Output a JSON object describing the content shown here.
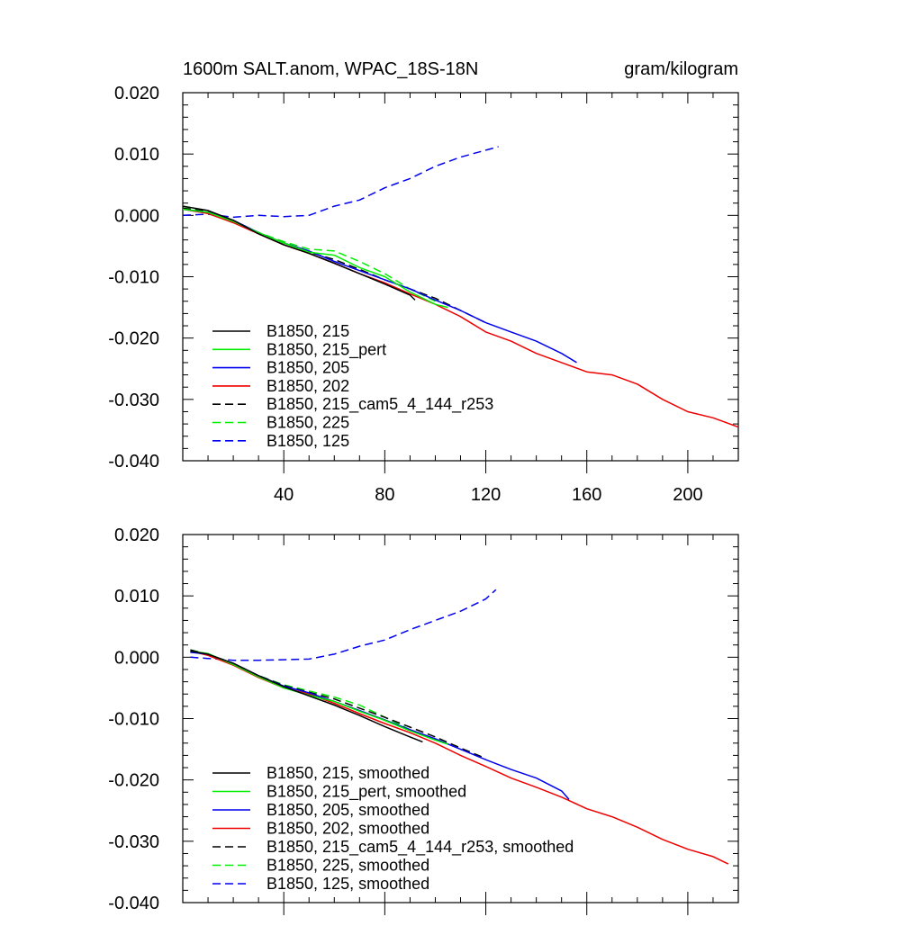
{
  "header": {
    "title": "1600m SALT.anom, WPAC_18S-18N",
    "units": "gram/kilogram"
  },
  "chart_data": [
    {
      "type": "line",
      "panel": "top",
      "xlim": [
        0,
        220
      ],
      "ylim": [
        -0.04,
        0.02
      ],
      "xticks": [
        40,
        80,
        120,
        160,
        200
      ],
      "xtick_labels": [
        "40",
        "80",
        "120",
        "160",
        "200"
      ],
      "yticks": [
        0.02,
        0.01,
        0.0,
        -0.01,
        -0.02,
        -0.03,
        -0.04
      ],
      "ytick_labels": [
        "0.020",
        "0.010",
        "0.000",
        "-0.010",
        "-0.020",
        "-0.030",
        "-0.040"
      ],
      "legend_position": "bottom-left",
      "series": [
        {
          "name": "B1850, 215",
          "color": "#000000",
          "dash": "solid",
          "x": [
            0,
            10,
            20,
            30,
            40,
            50,
            60,
            70,
            80,
            90,
            92
          ],
          "y": [
            0.0015,
            0.0008,
            -0.0008,
            -0.003,
            -0.0048,
            -0.0062,
            -0.0078,
            -0.0095,
            -0.0112,
            -0.013,
            -0.0138
          ]
        },
        {
          "name": "B1850, 215_pert",
          "color": "#00ee00",
          "dash": "solid",
          "x": [
            0,
            10,
            20,
            30,
            40,
            50,
            60,
            70,
            80,
            90,
            100,
            105
          ],
          "y": [
            0.001,
            0.0005,
            -0.001,
            -0.0028,
            -0.0045,
            -0.006,
            -0.0065,
            -0.0085,
            -0.01,
            -0.0125,
            -0.0145,
            -0.015
          ]
        },
        {
          "name": "B1850, 205",
          "color": "#0000ee",
          "dash": "solid",
          "x": [
            0,
            10,
            20,
            30,
            40,
            50,
            60,
            70,
            80,
            90,
            100,
            110,
            120,
            130,
            140,
            150,
            156
          ],
          "y": [
            0.001,
            0.0005,
            -0.0008,
            -0.0028,
            -0.0045,
            -0.0058,
            -0.0075,
            -0.009,
            -0.0105,
            -0.012,
            -0.0138,
            -0.0155,
            -0.0175,
            -0.019,
            -0.0205,
            -0.0225,
            -0.024
          ]
        },
        {
          "name": "B1850, 202",
          "color": "#ee0000",
          "dash": "solid",
          "x": [
            0,
            10,
            20,
            30,
            40,
            50,
            60,
            70,
            80,
            90,
            100,
            110,
            120,
            130,
            140,
            150,
            160,
            170,
            180,
            190,
            200,
            210,
            220
          ],
          "y": [
            0.001,
            0.0003,
            -0.0012,
            -0.003,
            -0.0048,
            -0.0062,
            -0.0078,
            -0.0095,
            -0.011,
            -0.0128,
            -0.0145,
            -0.0165,
            -0.019,
            -0.0205,
            -0.0225,
            -0.024,
            -0.0255,
            -0.026,
            -0.0275,
            -0.03,
            -0.032,
            -0.033,
            -0.0345
          ]
        },
        {
          "name": "B1850, 215_cam5_4_144_r253",
          "color": "#000000",
          "dash": "dashed",
          "x": [
            0,
            10,
            20,
            30,
            40,
            50,
            60,
            70,
            80,
            90,
            100,
            110,
            120
          ],
          "y": [
            0.0012,
            0.0006,
            -0.001,
            -0.0028,
            -0.0045,
            -0.006,
            -0.0072,
            -0.0088,
            -0.0105,
            -0.012,
            -0.0135,
            -0.0155,
            -0.0175
          ]
        },
        {
          "name": "B1850, 225",
          "color": "#00ee00",
          "dash": "dashed",
          "x": [
            0,
            10,
            20,
            30,
            40,
            50,
            60,
            70,
            80,
            90,
            100
          ],
          "y": [
            0.0015,
            0.0005,
            -0.001,
            -0.0028,
            -0.0043,
            -0.0055,
            -0.0058,
            -0.0075,
            -0.0095,
            -0.012,
            -0.014
          ]
        },
        {
          "name": "B1850, 125",
          "color": "#0000ee",
          "dash": "dashed",
          "x": [
            0,
            10,
            20,
            30,
            40,
            50,
            60,
            70,
            80,
            90,
            100,
            110,
            125
          ],
          "y": [
            0.0,
            0.0002,
            -0.0003,
            0.0,
            -0.0002,
            0.0,
            0.0015,
            0.0025,
            0.0045,
            0.006,
            0.008,
            0.0095,
            0.0112
          ]
        }
      ]
    },
    {
      "type": "line",
      "panel": "bottom",
      "xlim": [
        0,
        220
      ],
      "ylim": [
        -0.04,
        0.02
      ],
      "yticks": [
        0.02,
        0.01,
        0.0,
        -0.01,
        -0.02,
        -0.03,
        -0.04
      ],
      "ytick_labels": [
        "0.020",
        "0.010",
        "0.000",
        "-0.010",
        "-0.020",
        "-0.030",
        "-0.040"
      ],
      "legend_position": "bottom-left",
      "series": [
        {
          "name": "B1850, 215, smoothed",
          "color": "#000000",
          "dash": "solid",
          "x": [
            3,
            10,
            20,
            30,
            40,
            50,
            60,
            70,
            80,
            90,
            95
          ],
          "y": [
            0.001,
            0.0005,
            -0.001,
            -0.003,
            -0.0048,
            -0.0063,
            -0.0078,
            -0.0095,
            -0.0113,
            -0.013,
            -0.0138
          ]
        },
        {
          "name": "B1850, 215_pert, smoothed",
          "color": "#00ee00",
          "dash": "solid",
          "x": [
            3,
            10,
            20,
            30,
            40,
            50,
            60,
            70,
            80,
            90,
            100,
            105
          ],
          "y": [
            0.001,
            0.0006,
            -0.0012,
            -0.0032,
            -0.005,
            -0.0062,
            -0.0072,
            -0.0088,
            -0.0103,
            -0.012,
            -0.0135,
            -0.0142
          ]
        },
        {
          "name": "B1850, 205, smoothed",
          "color": "#0000ee",
          "dash": "solid",
          "x": [
            3,
            10,
            20,
            30,
            40,
            50,
            60,
            70,
            80,
            90,
            100,
            110,
            120,
            130,
            140,
            150,
            153
          ],
          "y": [
            0.0008,
            0.0005,
            -0.001,
            -0.003,
            -0.0047,
            -0.0058,
            -0.0072,
            -0.0087,
            -0.0102,
            -0.0118,
            -0.0133,
            -0.015,
            -0.0167,
            -0.0183,
            -0.0197,
            -0.0218,
            -0.0232
          ]
        },
        {
          "name": "B1850, 202, smoothed",
          "color": "#ee0000",
          "dash": "solid",
          "x": [
            3,
            10,
            20,
            30,
            40,
            50,
            60,
            70,
            80,
            90,
            100,
            110,
            120,
            130,
            140,
            150,
            160,
            170,
            180,
            190,
            200,
            210,
            216
          ],
          "y": [
            0.001,
            0.0003,
            -0.0013,
            -0.0033,
            -0.005,
            -0.006,
            -0.0075,
            -0.0092,
            -0.0108,
            -0.0123,
            -0.014,
            -0.016,
            -0.0178,
            -0.0197,
            -0.0212,
            -0.0228,
            -0.0247,
            -0.026,
            -0.0277,
            -0.0297,
            -0.0313,
            -0.0325,
            -0.0337
          ]
        },
        {
          "name": "B1850, 215_cam5_4_144_r253, smoothed",
          "color": "#000000",
          "dash": "dashed",
          "x": [
            3,
            10,
            20,
            30,
            40,
            50,
            60,
            70,
            80,
            90,
            100,
            110,
            120
          ],
          "y": [
            0.0012,
            0.0005,
            -0.0012,
            -0.003,
            -0.0046,
            -0.0057,
            -0.0068,
            -0.0083,
            -0.0098,
            -0.0114,
            -0.013,
            -0.0148,
            -0.0165
          ]
        },
        {
          "name": "B1850, 225, smoothed",
          "color": "#00ee00",
          "dash": "dashed",
          "x": [
            3,
            10,
            20,
            30,
            40,
            50,
            60,
            70,
            80,
            90,
            95
          ],
          "y": [
            0.0012,
            0.0005,
            -0.001,
            -0.003,
            -0.0045,
            -0.0055,
            -0.0065,
            -0.0078,
            -0.0098,
            -0.0118,
            -0.0127
          ]
        },
        {
          "name": "B1850, 125, smoothed",
          "color": "#0000ee",
          "dash": "dashed",
          "x": [
            3,
            10,
            20,
            30,
            40,
            50,
            60,
            70,
            80,
            90,
            100,
            110,
            120,
            124
          ],
          "y": [
            0.0,
            -0.0002,
            -0.0005,
            -0.0005,
            -0.0004,
            -0.0003,
            0.0005,
            0.0018,
            0.0028,
            0.0045,
            0.006,
            0.0075,
            0.0095,
            0.011
          ]
        }
      ]
    }
  ]
}
